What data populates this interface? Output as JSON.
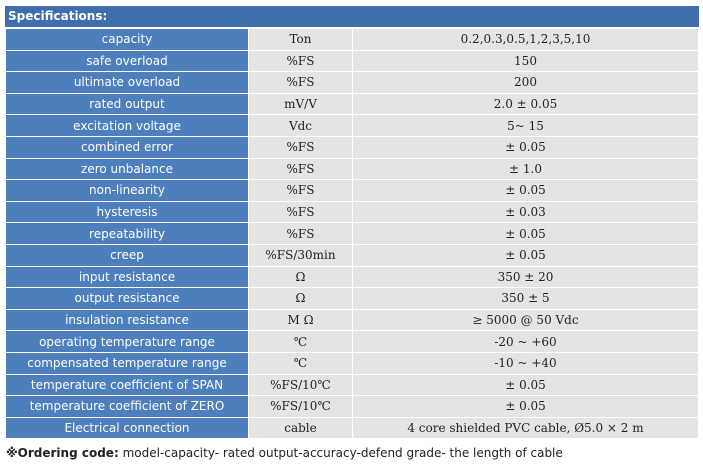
{
  "header": {
    "title": "Specifications:"
  },
  "table": {
    "rows": [
      [
        "capacity",
        "Ton",
        "0.2,0.3,0.5,1,2,3,5,10"
      ],
      [
        "safe overload",
        "%FS",
        "150"
      ],
      [
        "ultimate overload",
        "%FS",
        "200"
      ],
      [
        "rated output",
        "mV/V",
        "2.0 ± 0.05"
      ],
      [
        "excitation voltage",
        "Vdc",
        "5~ 15"
      ],
      [
        "combined error",
        "%FS",
        "± 0.05"
      ],
      [
        "zero unbalance",
        "%FS",
        "± 1.0"
      ],
      [
        "non-linearity",
        "%FS",
        "± 0.05"
      ],
      [
        "hysteresis",
        "%FS",
        "± 0.03"
      ],
      [
        "repeatability",
        "%FS",
        "± 0.05"
      ],
      [
        "creep",
        "%FS/30min",
        "± 0.05"
      ],
      [
        "input resistance",
        "Ω",
        "350 ± 20"
      ],
      [
        "output resistance",
        "Ω",
        "350 ± 5"
      ],
      [
        "insulation resistance",
        "M Ω",
        "≥ 5000 @ 50 Vdc"
      ],
      [
        "operating temperature range",
        "℃",
        "-20 ~ +60"
      ],
      [
        "compensated temperature range",
        "℃",
        "-10 ~ +40"
      ],
      [
        "temperature coefficient of SPAN",
        "%FS/10℃",
        "± 0.05"
      ],
      [
        "temperature coefficient of ZERO",
        "%FS/10℃",
        "± 0.05"
      ],
      [
        "Electrical connection",
        "cable",
        "4 core shielded PVC cable, Ø5.0 × 2 m"
      ]
    ]
  },
  "footer": {
    "label": "※Ordering code:",
    "text": "model-capacity- rated output-accuracy-defend grade- the length of cable"
  }
}
